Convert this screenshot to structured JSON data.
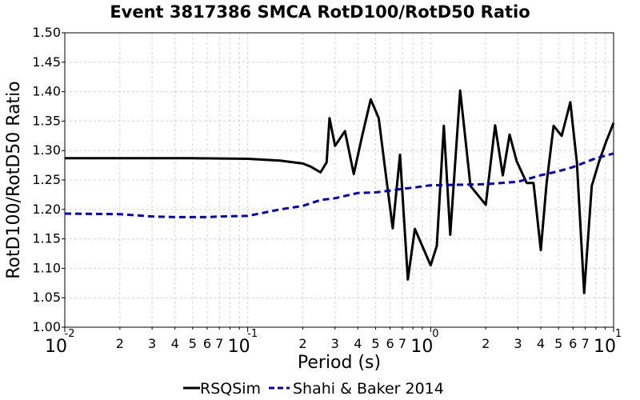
{
  "chart_data": {
    "type": "line",
    "title": "Event 3817386 SMCA RotD100/RotD50 Ratio",
    "xlabel": "Period (s)",
    "ylabel": "RotD100/RotD50 Ratio",
    "xscale": "log",
    "xlim": [
      0.01,
      10
    ],
    "ylim": [
      1.0,
      1.5
    ],
    "yticks": [
      "1.00",
      "1.05",
      "1.10",
      "1.15",
      "1.20",
      "1.25",
      "1.30",
      "1.35",
      "1.40",
      "1.45",
      "1.50"
    ],
    "xticks_major": [
      {
        "value": 0.01,
        "base": "10",
        "exp": "-2"
      },
      {
        "value": 0.1,
        "base": "10",
        "exp": "-1"
      },
      {
        "value": 1,
        "base": "10",
        "exp": "0"
      },
      {
        "value": 10,
        "base": "10",
        "exp": "1"
      }
    ],
    "xticks_minor_labels": [
      "2",
      "3",
      "4",
      "5",
      "6",
      "7"
    ],
    "grid": true,
    "legend_position": "bottom",
    "series": [
      {
        "name": "RSQSim",
        "color": "#000000",
        "style": "solid",
        "x": [
          0.01,
          0.02,
          0.05,
          0.1,
          0.15,
          0.2,
          0.22,
          0.25,
          0.27,
          0.28,
          0.3,
          0.34,
          0.38,
          0.42,
          0.47,
          0.52,
          0.56,
          0.62,
          0.68,
          0.75,
          0.82,
          1.0,
          1.08,
          1.18,
          1.28,
          1.45,
          1.65,
          2.0,
          2.25,
          2.48,
          2.7,
          2.95,
          3.35,
          3.65,
          4.0,
          4.3,
          4.7,
          5.2,
          5.8,
          6.3,
          6.9,
          7.6,
          8.3,
          9.1,
          10.0
        ],
        "y": [
          1.287,
          1.287,
          1.287,
          1.286,
          1.283,
          1.278,
          1.273,
          1.263,
          1.28,
          1.355,
          1.308,
          1.333,
          1.26,
          1.322,
          1.387,
          1.355,
          1.275,
          1.168,
          1.293,
          1.081,
          1.167,
          1.105,
          1.138,
          1.342,
          1.157,
          1.402,
          1.24,
          1.208,
          1.343,
          1.258,
          1.327,
          1.282,
          1.245,
          1.245,
          1.131,
          1.244,
          1.342,
          1.325,
          1.382,
          1.28,
          1.058,
          1.24,
          1.28,
          1.315,
          1.347
        ]
      },
      {
        "name": "Shahi & Baker 2014",
        "color": "#0000cc",
        "style": "dashed",
        "x": [
          0.01,
          0.02,
          0.03,
          0.04,
          0.05,
          0.06,
          0.07,
          0.1,
          0.15,
          0.2,
          0.25,
          0.3,
          0.4,
          0.5,
          0.6,
          0.7,
          0.8,
          1.0,
          1.5,
          2.0,
          3.0,
          4.0,
          5.0,
          6.0,
          7.0,
          8.0,
          10.0
        ],
        "y": [
          1.193,
          1.192,
          1.188,
          1.187,
          1.187,
          1.187,
          1.188,
          1.189,
          1.2,
          1.206,
          1.216,
          1.219,
          1.228,
          1.229,
          1.232,
          1.235,
          1.237,
          1.241,
          1.242,
          1.243,
          1.247,
          1.258,
          1.265,
          1.272,
          1.28,
          1.287,
          1.295
        ]
      }
    ]
  }
}
